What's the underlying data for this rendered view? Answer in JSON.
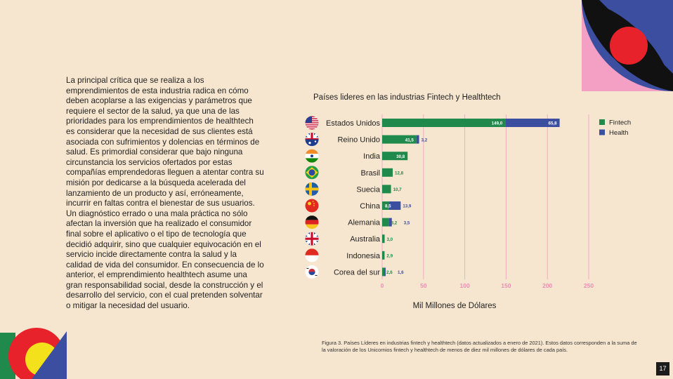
{
  "body_text": "La principal crítica que se realiza a los emprendimientos de esta industria radica en cómo deben acoplarse a las exigencias y parámetros que requiere el sector de la salud, ya que una de las prioridades para los emprendimientos de healthtech es considerar que la necesidad de sus clientes está asociada con  sufrimientos y  dolencias en términos de salud. Es primordial considerar que bajo ninguna circunstancia los servicios ofertados por estas compañías emprendedoras lleguen a atentar contra su misión por dedicarse a  la búsqueda acelerada del lanzamiento de un producto y así, erróneamente, incurrir en faltas contra el bienestar de sus usuarios. Un diagnóstico errado o una mala práctica no sólo afectan la inversión que ha realizado el consumidor final sobre el aplicativo o el tipo de tecnología que decidió adquirir, sino que cualquier equivocación en el servicio incide directamente contra la salud y la calidad de vida del consumidor. En consecuencia de lo anterior, el emprendimiento healthtech asume una gran responsabilidad social, desde la construcción y el desarrollo del servicio, con el cual pretenden solventar o mitigar la necesidad del usuario.",
  "caption": "Figura 3. Países Líderes en industrias fintech y healthtech (datos actualizados a enero de 2021). Estos datos corresponden a la suma de la valoración de los Unicornios fintech y healthtech de menos de diez mil millones de dólares de cada país.",
  "page_number": "17",
  "colors": {
    "background": "#f6e6cf",
    "fintech": "#1f8a4c",
    "health": "#3c4ea0",
    "gridline": "#f2a9c8",
    "tick_text": "#f08cb6",
    "deco_red": "#e8222a",
    "deco_black": "#111111",
    "deco_pink": "#f4a0c4",
    "deco_yellow": "#f3e21b"
  },
  "chart_data": {
    "type": "bar",
    "orientation": "horizontal",
    "stacked": true,
    "title": "Países lideres en las industrias Fintech y Healthtech",
    "xlabel": "Mil Millones de Dólares",
    "ylabel": "",
    "xlim": [
      0,
      250
    ],
    "xticks": [
      "0",
      "50",
      "100",
      "150",
      "200",
      "250"
    ],
    "grid": true,
    "legend_position": "right",
    "categories": [
      "Estados Unidos",
      "Reino Unido",
      "India",
      "Brasil",
      "Suecia",
      "China",
      "Alemania",
      "Australia",
      "Indonesia",
      "Corea del sur"
    ],
    "flag_icons": [
      "usa-flag-icon",
      "australia-flag-icon",
      "india-flag-icon",
      "brazil-flag-icon",
      "sweden-flag-icon",
      "china-flag-icon",
      "germany-flag-icon",
      "uk-flag-icon",
      "indonesia-flag-icon",
      "south-korea-flag-icon"
    ],
    "series": [
      {
        "name": "Fintech",
        "values": [
          149.0,
          41.5,
          30.8,
          12.8,
          10.7,
          8.5,
          8.2,
          3.0,
          2.9,
          2.6
        ],
        "labels": [
          "149,0",
          "41,5",
          "30,8",
          "12,8",
          "10,7",
          "8,5",
          "8,2",
          "3,0",
          "2,9",
          "2,6"
        ]
      },
      {
        "name": "Health",
        "values": [
          65.8,
          3.2,
          0,
          0,
          0,
          13.9,
          3.5,
          0,
          0,
          1.6
        ],
        "labels": [
          "65,8",
          "3,2",
          "",
          "",
          "",
          "13,9",
          "3,5",
          "",
          "",
          "1,6"
        ]
      }
    ]
  }
}
